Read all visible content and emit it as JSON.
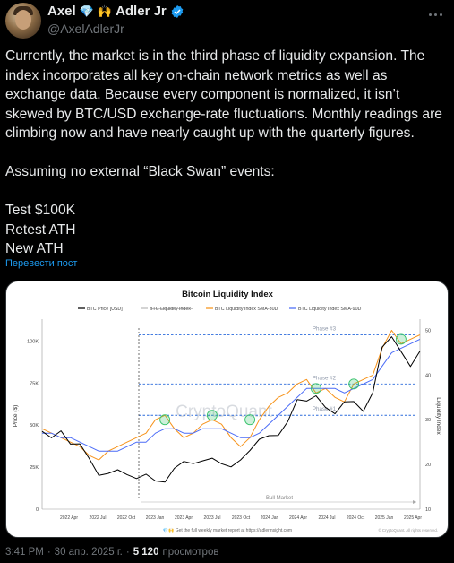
{
  "author": {
    "display_name": "Axel",
    "name_suffix": "Adler Jr",
    "emoji_1": "💎",
    "emoji_2": "🙌",
    "handle": "@AxelAdlerJr",
    "verified_color": "#1d9bf0"
  },
  "tweet": {
    "text": "Currently, the market is in the third phase of liquidity expansion. The index incorporates all key on-chain network metrics as well as exchange data. Because every component is normalized, it isn’t skewed by BTC/USD exchange-rate fluctuations. Monthly readings are climbing now and have nearly caught up with the quarterly figures.\n\nAssuming no external “Black Swan” events:\n\nTest $100K\nRetest ATH\nNew ATH",
    "translate_link": "Перевести пост"
  },
  "meta": {
    "time": "3:41 PM",
    "date": "30 апр. 2025 г.",
    "separator": "·",
    "views_count": "5 120",
    "views_label": "просмотров"
  },
  "chart_data": {
    "type": "line",
    "title": "Bitcoin Liquidity Index",
    "watermark": "CryptoQuant",
    "legend": [
      "BTC Price [USD]",
      "BTC Liquidity Index",
      "BTC Liquidity Index SMA-30D",
      "BTC Liquidity Index SMA-90D"
    ],
    "legend_placement": "top",
    "colors": {
      "price": "#000000",
      "index": "#bbbbbb",
      "sma30": "#f7931a",
      "sma90": "#4b6cf7",
      "phase_line": "#2b6bdc",
      "phase_label": "#8c96a8",
      "marker": "#36c26b"
    },
    "ylabel_left": "Price ($)",
    "ylabel_right": "Liquidity Index",
    "y_left_ticks": [
      "100K",
      "75K",
      "50K",
      "25K",
      "0"
    ],
    "y_left_range": [
      0,
      100000
    ],
    "y_right_ticks": [
      "50",
      "40",
      "30",
      "20",
      "10"
    ],
    "y_right_range": [
      10,
      50
    ],
    "x_ticks": [
      "2022 Apr",
      "2022 Jul",
      "2022 Oct",
      "2023 Jan",
      "2023 Apr",
      "2023 Jul",
      "2023 Oct",
      "2024 Jan",
      "2024 Apr",
      "2024 Jul",
      "2024 Oct",
      "2025 Jan",
      "2025 Apr"
    ],
    "phases": [
      {
        "label": "Phase #1",
        "level": 31
      },
      {
        "label": "Phase #2",
        "level": 38
      },
      {
        "label": "Phase #3",
        "level": 49
      }
    ],
    "annotation": "Bull Market",
    "footer": "💎🙌 Get the full weekly market report at https://adlerinsight.com",
    "footer_right": "© CryptoQuant. All rights reserved.",
    "series": [
      {
        "name": "BTC Price [USD]",
        "x": [
          0,
          1,
          2,
          3,
          4,
          5,
          6,
          7,
          8,
          9,
          10,
          11,
          12,
          13,
          14,
          15,
          16,
          17,
          18,
          19,
          20,
          21,
          22,
          23,
          24,
          25,
          26,
          27,
          28,
          29,
          30,
          31,
          32,
          33,
          34,
          35,
          36,
          37,
          38,
          39,
          40
        ],
        "values": [
          45000,
          42000,
          47000,
          40000,
          38000,
          30000,
          21000,
          20000,
          23000,
          21000,
          19500,
          20000,
          16800,
          17000,
          23000,
          28000,
          27500,
          30000,
          29500,
          27000,
          26000,
          28000,
          34500,
          42000,
          45000,
          43000,
          52000,
          66000,
          63000,
          67000,
          61000,
          58000,
          63000,
          64000,
          59000,
          68000,
          96000,
          103000,
          95000,
          84000,
          94000
        ]
      },
      {
        "name": "BTC Liquidity Index SMA-30D",
        "x": [
          0,
          1,
          2,
          3,
          4,
          5,
          6,
          7,
          8,
          9,
          10,
          11,
          12,
          13,
          14,
          15,
          16,
          17,
          18,
          19,
          20,
          21,
          22,
          23,
          24,
          25,
          26,
          27,
          28,
          29,
          30,
          31,
          32,
          33,
          34,
          35,
          36,
          37,
          38,
          39,
          40
        ],
        "values": [
          28,
          27,
          26,
          25,
          24,
          22,
          21,
          23,
          24,
          25,
          26,
          27,
          30,
          31,
          28,
          26,
          27,
          29,
          30,
          29,
          26,
          24,
          26,
          30,
          33,
          35,
          36,
          38,
          39,
          36,
          37,
          35,
          34,
          38,
          39,
          40,
          46,
          50,
          47,
          48,
          49
        ]
      },
      {
        "name": "BTC Liquidity Index SMA-90D",
        "x": [
          0,
          1,
          2,
          3,
          4,
          5,
          6,
          7,
          8,
          9,
          10,
          11,
          12,
          13,
          14,
          15,
          16,
          17,
          18,
          19,
          20,
          21,
          22,
          23,
          24,
          25,
          26,
          27,
          28,
          29,
          30,
          31,
          32,
          33,
          34,
          35,
          36,
          37,
          38,
          39,
          40
        ],
        "values": [
          27,
          27,
          26,
          26,
          25,
          24,
          23,
          23,
          23,
          24,
          25,
          25,
          27,
          28,
          28,
          27,
          27,
          28,
          28,
          28,
          27,
          26,
          26,
          27,
          29,
          31,
          33,
          35,
          37,
          37,
          37,
          37,
          36,
          37,
          38,
          39,
          42,
          45,
          46,
          47,
          48
        ]
      }
    ]
  }
}
